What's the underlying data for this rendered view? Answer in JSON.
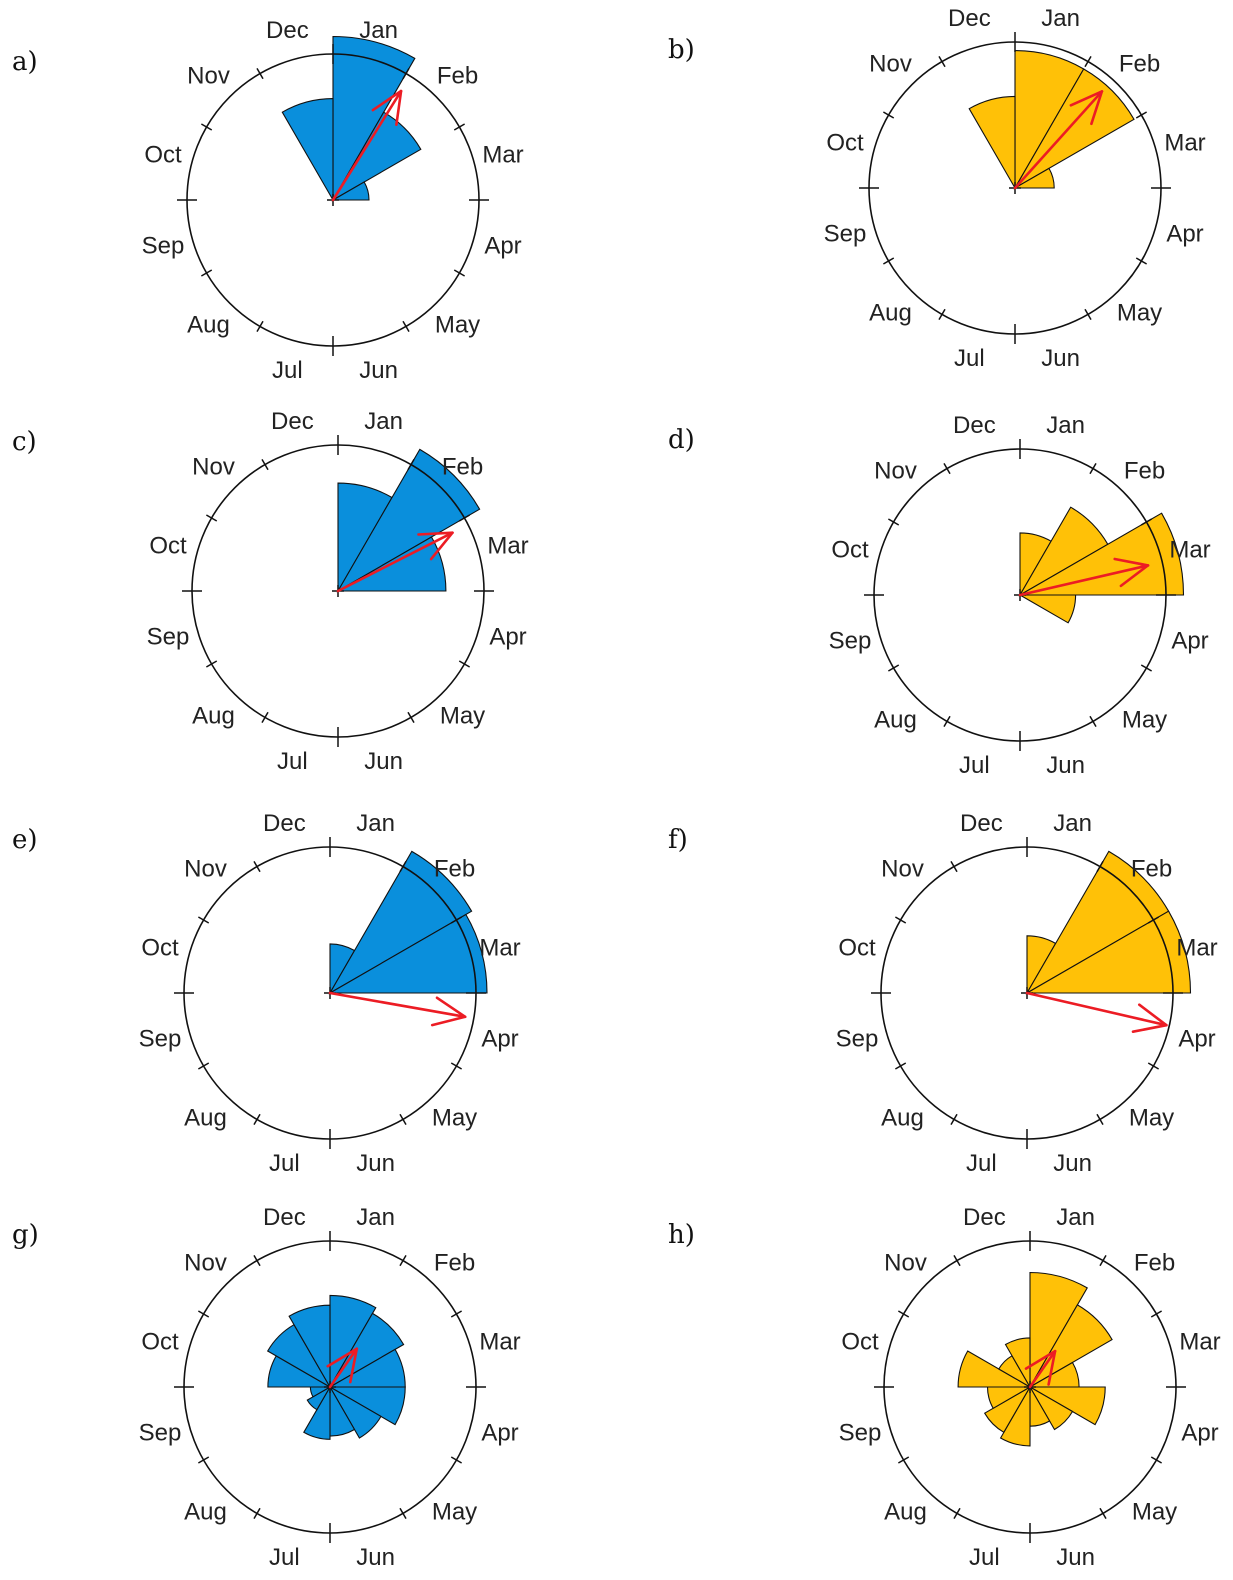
{
  "colors": {
    "blue": "#0a8fdc",
    "orange": "#ffc107",
    "arrow": "#ec1c24"
  },
  "chart_data": [
    {
      "type": "rose",
      "panel": "a)",
      "fill": "blue",
      "months": [
        "Jan",
        "Feb",
        "Mar",
        "Apr",
        "May",
        "Jun",
        "Jul",
        "Aug",
        "Sep",
        "Oct",
        "Nov",
        "Dec"
      ],
      "values": [
        1.0,
        0.62,
        0.22,
        0,
        0,
        0,
        0,
        0,
        0,
        0,
        0,
        0.62
      ],
      "mean_direction_deg": 32,
      "mean_length": 0.88
    },
    {
      "type": "rose",
      "panel": "b)",
      "fill": "orange",
      "months": [
        "Jan",
        "Feb",
        "Mar",
        "Apr",
        "May",
        "Jun",
        "Jul",
        "Aug",
        "Sep",
        "Oct",
        "Nov",
        "Dec"
      ],
      "values": [
        0.84,
        0.84,
        0.24,
        0,
        0,
        0,
        0,
        0,
        0,
        0,
        0,
        0.56
      ],
      "mean_direction_deg": 42,
      "mean_length": 0.89
    },
    {
      "type": "rose",
      "panel": "c)",
      "fill": "blue",
      "months": [
        "Jan",
        "Feb",
        "Mar",
        "Apr",
        "May",
        "Jun",
        "Jul",
        "Aug",
        "Sep",
        "Oct",
        "Nov",
        "Dec"
      ],
      "values": [
        0.66,
        1.0,
        0.66,
        0,
        0,
        0,
        0,
        0,
        0,
        0,
        0,
        0
      ],
      "mean_direction_deg": 63,
      "mean_length": 0.88
    },
    {
      "type": "rose",
      "panel": "d)",
      "fill": "orange",
      "months": [
        "Jan",
        "Feb",
        "Mar",
        "Apr",
        "May",
        "Jun",
        "Jul",
        "Aug",
        "Sep",
        "Oct",
        "Nov",
        "Dec"
      ],
      "values": [
        0.38,
        0.62,
        1.0,
        0.34,
        0,
        0,
        0,
        0,
        0,
        0,
        0,
        0
      ],
      "mean_direction_deg": 77,
      "mean_length": 0.9
    },
    {
      "type": "rose",
      "panel": "e)",
      "fill": "blue",
      "months": [
        "Jan",
        "Feb",
        "Mar",
        "Apr",
        "May",
        "Jun",
        "Jul",
        "Aug",
        "Sep",
        "Oct",
        "Nov",
        "Dec"
      ],
      "values": [
        0.3,
        1.0,
        0.96,
        0,
        0,
        0,
        0,
        0,
        0,
        0,
        0,
        0
      ],
      "mean_direction_deg": 100,
      "mean_length": 0.94
    },
    {
      "type": "rose",
      "panel": "f)",
      "fill": "orange",
      "months": [
        "Jan",
        "Feb",
        "Mar",
        "Apr",
        "May",
        "Jun",
        "Jul",
        "Aug",
        "Sep",
        "Oct",
        "Nov",
        "Dec"
      ],
      "values": [
        0.35,
        1.0,
        1.0,
        0,
        0,
        0,
        0,
        0,
        0,
        0,
        0,
        0
      ],
      "mean_direction_deg": 103,
      "mean_length": 0.98
    },
    {
      "type": "rose",
      "panel": "g)",
      "fill": "blue",
      "months": [
        "Jan",
        "Feb",
        "Mar",
        "Apr",
        "May",
        "Jun",
        "Jul",
        "Aug",
        "Sep",
        "Oct",
        "Nov",
        "Dec"
      ],
      "values": [
        0.56,
        0.52,
        0.46,
        0.46,
        0.36,
        0.3,
        0.32,
        0.16,
        0.12,
        0.38,
        0.44,
        0.5
      ],
      "mean_direction_deg": 35,
      "mean_length": 0.32
    },
    {
      "type": "rose",
      "panel": "h)",
      "fill": "orange",
      "months": [
        "Jan",
        "Feb",
        "Mar",
        "Apr",
        "May",
        "Jun",
        "Jul",
        "Aug",
        "Sep",
        "Oct",
        "Nov",
        "Dec"
      ],
      "values": [
        0.7,
        0.58,
        0.3,
        0.46,
        0.3,
        0.24,
        0.36,
        0.32,
        0.26,
        0.44,
        0.22,
        0.3
      ],
      "mean_direction_deg": 35,
      "mean_length": 0.3
    }
  ]
}
